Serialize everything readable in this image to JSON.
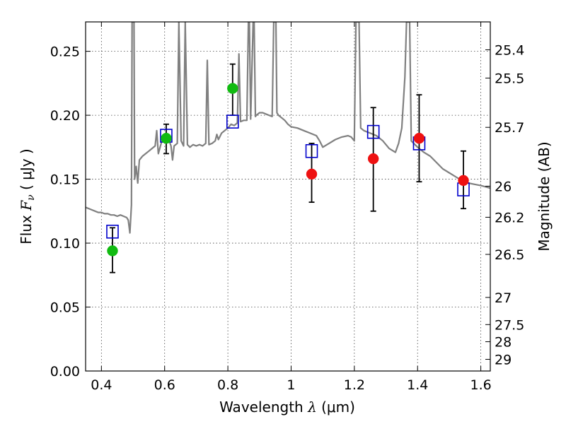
{
  "chart_data": {
    "type": "scatter",
    "xlabel_prefix": "Wavelength",
    "xlabel_symbol": "λ",
    "xlabel_unit": "(μm)",
    "ylabel_prefix": "Flux",
    "ylabel_symbol": "F",
    "ylabel_subscript": "ν",
    "ylabel_unit": "( μJy )",
    "y2label": "Magnitude (AB)",
    "xlim": [
      0.35,
      1.63
    ],
    "ylim": [
      0.0,
      0.273
    ],
    "grid": true,
    "x_ticks": [
      {
        "value": 0.4,
        "label": "0.4"
      },
      {
        "value": 0.6,
        "label": "0.6"
      },
      {
        "value": 0.8,
        "label": "0.8"
      },
      {
        "value": 1.0,
        "label": "1"
      },
      {
        "value": 1.2,
        "label": "1.2"
      },
      {
        "value": 1.4,
        "label": "1.4"
      },
      {
        "value": 1.6,
        "label": "1.6"
      }
    ],
    "y_ticks": [
      {
        "value": 0.0,
        "label": "0.00"
      },
      {
        "value": 0.05,
        "label": "0.05"
      },
      {
        "value": 0.1,
        "label": "0.10"
      },
      {
        "value": 0.15,
        "label": "0.15"
      },
      {
        "value": 0.2,
        "label": "0.20"
      },
      {
        "value": 0.25,
        "label": "0.25"
      }
    ],
    "y2_ticks": [
      {
        "mag": 25.4,
        "label": "25.4"
      },
      {
        "mag": 25.5,
        "label": "25.5"
      },
      {
        "mag": 25.7,
        "label": "25.7"
      },
      {
        "mag": 26.0,
        "label": "26"
      },
      {
        "mag": 26.2,
        "label": "26.2"
      },
      {
        "mag": 26.5,
        "label": "26.5"
      },
      {
        "mag": 27.0,
        "label": "27"
      },
      {
        "mag": 27.5,
        "label": "27.5"
      },
      {
        "mag": 28.0,
        "label": "28"
      },
      {
        "mag": 29.0,
        "label": "29"
      }
    ],
    "series": [
      {
        "kind": "line",
        "color": "#808080",
        "points": [
          [
            0.35,
            0.128
          ],
          [
            0.36,
            0.127
          ],
          [
            0.37,
            0.126
          ],
          [
            0.38,
            0.125
          ],
          [
            0.39,
            0.124
          ],
          [
            0.4,
            0.124
          ],
          [
            0.41,
            0.123
          ],
          [
            0.42,
            0.123
          ],
          [
            0.43,
            0.122
          ],
          [
            0.44,
            0.122
          ],
          [
            0.45,
            0.121
          ],
          [
            0.46,
            0.122
          ],
          [
            0.47,
            0.121
          ],
          [
            0.48,
            0.12
          ],
          [
            0.485,
            0.118
          ],
          [
            0.49,
            0.108
          ],
          [
            0.495,
            0.13
          ],
          [
            0.497,
            0.273
          ],
          [
            0.503,
            0.273
          ],
          [
            0.505,
            0.15
          ],
          [
            0.51,
            0.16
          ],
          [
            0.515,
            0.147
          ],
          [
            0.52,
            0.165
          ],
          [
            0.53,
            0.168
          ],
          [
            0.54,
            0.17
          ],
          [
            0.55,
            0.172
          ],
          [
            0.56,
            0.174
          ],
          [
            0.57,
            0.176
          ],
          [
            0.575,
            0.188
          ],
          [
            0.58,
            0.17
          ],
          [
            0.59,
            0.179
          ],
          [
            0.6,
            0.181
          ],
          [
            0.61,
            0.183
          ],
          [
            0.62,
            0.176
          ],
          [
            0.625,
            0.165
          ],
          [
            0.63,
            0.176
          ],
          [
            0.64,
            0.178
          ],
          [
            0.645,
            0.273
          ],
          [
            0.652,
            0.18
          ],
          [
            0.66,
            0.176
          ],
          [
            0.665,
            0.273
          ],
          [
            0.672,
            0.177
          ],
          [
            0.68,
            0.175
          ],
          [
            0.69,
            0.177
          ],
          [
            0.7,
            0.176
          ],
          [
            0.71,
            0.177
          ],
          [
            0.72,
            0.176
          ],
          [
            0.73,
            0.178
          ],
          [
            0.735,
            0.243
          ],
          [
            0.74,
            0.177
          ],
          [
            0.75,
            0.178
          ],
          [
            0.76,
            0.18
          ],
          [
            0.765,
            0.185
          ],
          [
            0.77,
            0.181
          ],
          [
            0.78,
            0.186
          ],
          [
            0.79,
            0.188
          ],
          [
            0.8,
            0.19
          ],
          [
            0.81,
            0.193
          ],
          [
            0.82,
            0.192
          ],
          [
            0.83,
            0.194
          ],
          [
            0.835,
            0.248
          ],
          [
            0.84,
            0.195
          ],
          [
            0.85,
            0.196
          ],
          [
            0.86,
            0.196
          ],
          [
            0.865,
            0.273
          ],
          [
            0.868,
            0.273
          ],
          [
            0.872,
            0.197
          ],
          [
            0.88,
            0.273
          ],
          [
            0.883,
            0.273
          ],
          [
            0.887,
            0.199
          ],
          [
            0.89,
            0.2
          ],
          [
            0.9,
            0.202
          ],
          [
            0.91,
            0.202
          ],
          [
            0.92,
            0.201
          ],
          [
            0.93,
            0.2
          ],
          [
            0.94,
            0.199
          ],
          [
            0.945,
            0.273
          ],
          [
            0.952,
            0.273
          ],
          [
            0.955,
            0.202
          ],
          [
            0.96,
            0.2
          ],
          [
            0.97,
            0.198
          ],
          [
            0.98,
            0.196
          ],
          [
            0.99,
            0.193
          ],
          [
            1.0,
            0.191
          ],
          [
            1.02,
            0.19
          ],
          [
            1.04,
            0.188
          ],
          [
            1.06,
            0.186
          ],
          [
            1.08,
            0.184
          ],
          [
            1.09,
            0.18
          ],
          [
            1.1,
            0.175
          ],
          [
            1.12,
            0.178
          ],
          [
            1.14,
            0.181
          ],
          [
            1.16,
            0.183
          ],
          [
            1.18,
            0.184
          ],
          [
            1.19,
            0.183
          ],
          [
            1.2,
            0.18
          ],
          [
            1.205,
            0.273
          ],
          [
            1.215,
            0.273
          ],
          [
            1.22,
            0.19
          ],
          [
            1.23,
            0.188
          ],
          [
            1.25,
            0.186
          ],
          [
            1.27,
            0.184
          ],
          [
            1.29,
            0.18
          ],
          [
            1.31,
            0.174
          ],
          [
            1.33,
            0.171
          ],
          [
            1.34,
            0.178
          ],
          [
            1.35,
            0.19
          ],
          [
            1.36,
            0.23
          ],
          [
            1.365,
            0.273
          ],
          [
            1.375,
            0.273
          ],
          [
            1.38,
            0.18
          ],
          [
            1.4,
            0.175
          ],
          [
            1.42,
            0.171
          ],
          [
            1.44,
            0.168
          ],
          [
            1.46,
            0.163
          ],
          [
            1.48,
            0.158
          ],
          [
            1.5,
            0.155
          ],
          [
            1.52,
            0.152
          ],
          [
            1.54,
            0.149
          ],
          [
            1.56,
            0.147
          ],
          [
            1.58,
            0.146
          ],
          [
            1.6,
            0.145
          ],
          [
            1.63,
            0.143
          ]
        ]
      },
      {
        "kind": "square",
        "color": "#0000cc",
        "points": [
          [
            0.435,
            0.109
          ],
          [
            0.605,
            0.184
          ],
          [
            0.815,
            0.195
          ],
          [
            1.065,
            0.172
          ],
          [
            1.26,
            0.187
          ],
          [
            1.405,
            0.178
          ],
          [
            1.545,
            0.142
          ]
        ]
      },
      {
        "kind": "circle",
        "color": "#11bb11",
        "points": [
          {
            "x": 0.435,
            "y": 0.094,
            "err": [
              0.077,
              0.112
            ]
          },
          {
            "x": 0.605,
            "y": 0.182,
            "err": [
              0.17,
              0.193
            ]
          },
          {
            "x": 0.815,
            "y": 0.221,
            "err": [
              0.2,
              0.24
            ]
          }
        ]
      },
      {
        "kind": "circle",
        "color": "#ee1111",
        "points": [
          {
            "x": 1.065,
            "y": 0.154,
            "err": [
              0.132,
              0.178
            ]
          },
          {
            "x": 1.26,
            "y": 0.166,
            "err": [
              0.125,
              0.206
            ]
          },
          {
            "x": 1.405,
            "y": 0.182,
            "err": [
              0.148,
              0.216
            ]
          },
          {
            "x": 1.545,
            "y": 0.149,
            "err": [
              0.127,
              0.172
            ]
          }
        ]
      }
    ]
  }
}
